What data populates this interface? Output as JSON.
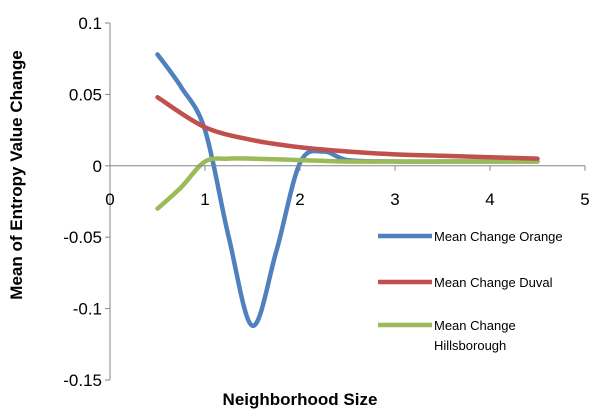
{
  "chart_data": {
    "type": "line",
    "title": "",
    "xlabel": "Neighborhood Size",
    "ylabel": "Mean of Entropy Value Change",
    "xlim": [
      0,
      5
    ],
    "ylim": [
      -0.15,
      0.1
    ],
    "xticks": [
      "0",
      "1",
      "2",
      "3",
      "4",
      "5"
    ],
    "yticks": [
      "0.1",
      "0.05",
      "0",
      "-0.05",
      "-0.1",
      "-0.15"
    ],
    "grid": false,
    "legend": "right",
    "series": [
      {
        "name": "Mean Change Orange",
        "color": "#4F81BD",
        "x": [
          0.5,
          0.75,
          1.0,
          1.25,
          1.5,
          1.75,
          2.0,
          2.25,
          2.5,
          3.0,
          3.5,
          4.0,
          4.5
        ],
        "y": [
          0.078,
          0.055,
          0.025,
          -0.05,
          -0.112,
          -0.06,
          0.002,
          0.01,
          0.004,
          0.003,
          0.003,
          0.003,
          0.003
        ]
      },
      {
        "name": "Mean Change Duval",
        "color": "#C0504D",
        "x": [
          0.5,
          1.0,
          1.5,
          2.0,
          2.5,
          3.0,
          3.5,
          4.0,
          4.5
        ],
        "y": [
          0.048,
          0.027,
          0.018,
          0.013,
          0.01,
          0.008,
          0.007,
          0.006,
          0.005
        ]
      },
      {
        "name": "Mean Change Hillsborough",
        "legend_lines": [
          "Mean Change",
          "Hillsborough"
        ],
        "color": "#9BBB59",
        "x": [
          0.5,
          0.75,
          1.0,
          1.25,
          1.5,
          2.0,
          2.5,
          3.0,
          3.5,
          4.0,
          4.5
        ],
        "y": [
          -0.03,
          -0.015,
          0.003,
          0.005,
          0.005,
          0.004,
          0.003,
          0.003,
          0.003,
          0.003,
          0.003
        ]
      }
    ]
  }
}
